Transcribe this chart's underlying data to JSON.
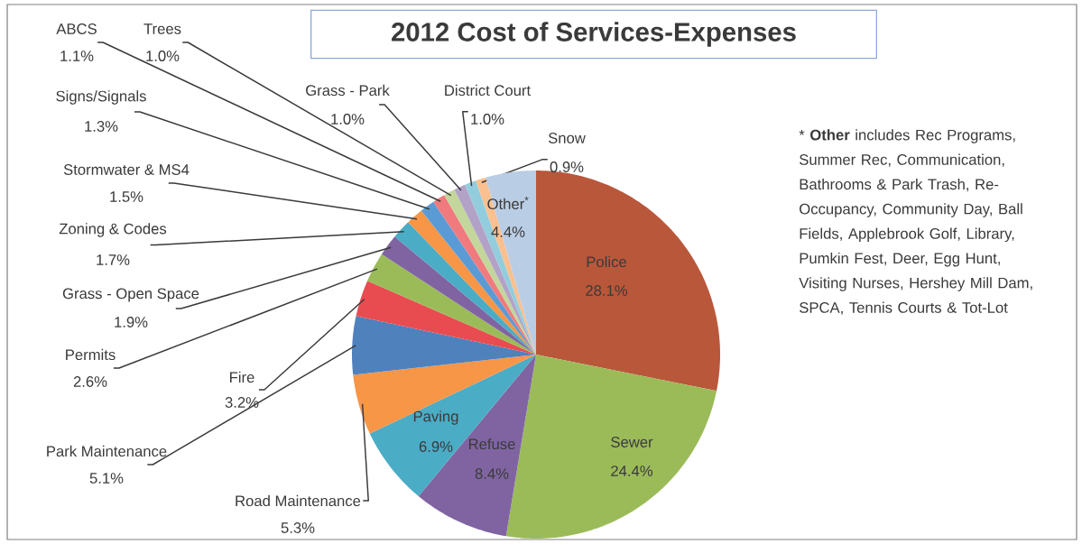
{
  "chart_data": {
    "type": "pie",
    "title": "2012 Cost of Services-Expenses",
    "categories": [
      "Police",
      "Sewer",
      "Refuse",
      "Paving",
      "Road Maintenance",
      "Park Maintenance",
      "Fire",
      "Permits",
      "Grass - Open Space",
      "Zoning & Codes",
      "Stormwater & MS4",
      "Signs/Signals",
      "ABCS",
      "Trees",
      "Grass - Park",
      "District Court",
      "Snow",
      "Other$^{*}$"
    ],
    "values": [
      28.1,
      24.4,
      8.4,
      6.9,
      5.3,
      5.1,
      3.2,
      2.6,
      1.9,
      1.7,
      1.5,
      1.3,
      1.1,
      1.0,
      1.0,
      1.0,
      0.9,
      4.4
    ],
    "value_labels": [
      "28.1%",
      "24.4%",
      "8.4%",
      "6.9%",
      "5.3%",
      "5.1%",
      "3.2%",
      "2.6%",
      "1.9%",
      "1.7%",
      "1.5%",
      "1.3%",
      "1.1%",
      "1.0%",
      "1.0%",
      "1.0%",
      "0.9%",
      "4.4%"
    ],
    "colors": [
      "#b9573b",
      "#9bbb59",
      "#8064a2",
      "#4bacc6",
      "#f79646",
      "#4f81bd",
      "#e84c50",
      "#9bbb59",
      "#8064a2",
      "#4bacc6",
      "#f79646",
      "#5b9bd5",
      "#f07a7d",
      "#c3d69b",
      "#b3a2c7",
      "#93cddd",
      "#fac090",
      "#b9cde5"
    ],
    "annotations": [
      "* **Other** includes Rec Programs, Summer Rec, Communication, Bathrooms & Park Trash, Re-Occupancy, Community Day, Ball Fields, Applebrook Golf, Library, Pumkin Fest, Deer, Egg Hunt, Visiting Nurses, Hershey Mill Dam, SPCA, Tennis Courts & Tot-Lot"
    ]
  }
}
